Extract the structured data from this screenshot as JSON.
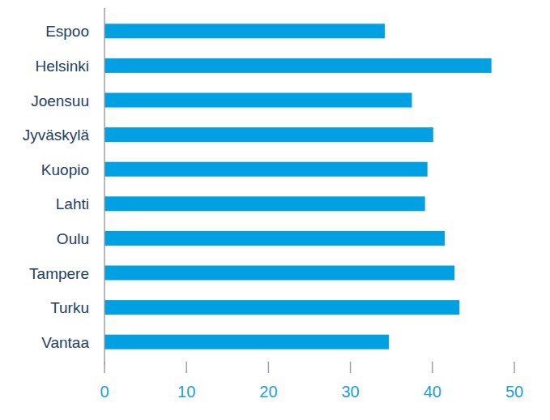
{
  "chart_data": {
    "type": "bar",
    "orientation": "horizontal",
    "categories": [
      "Espoo",
      "Helsinki",
      "Joensuu",
      "Jyväskylä",
      "Kuopio",
      "Lahti",
      "Oulu",
      "Tampere",
      "Turku",
      "Vantaa"
    ],
    "values": [
      34.2,
      47.2,
      37.5,
      40.1,
      39.4,
      39.1,
      41.5,
      42.7,
      43.3,
      34.7
    ],
    "color": "#00a0e3",
    "xlim": [
      0,
      50
    ],
    "xticks": [
      0,
      10,
      20,
      30,
      40,
      50
    ],
    "grid": false
  }
}
